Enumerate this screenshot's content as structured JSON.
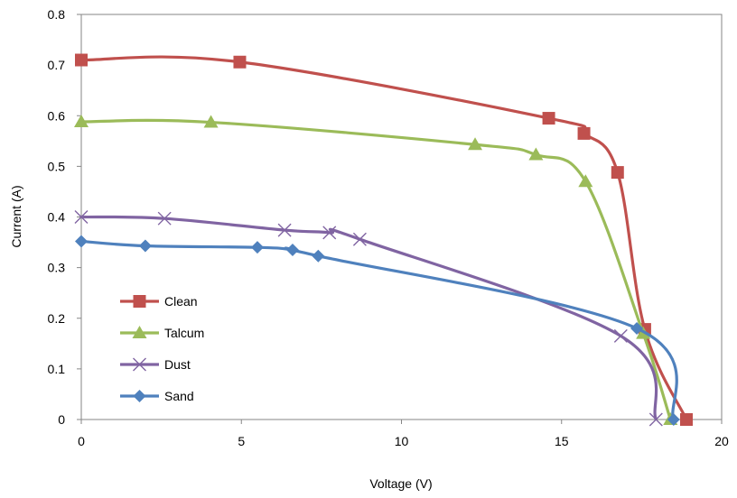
{
  "chart_data": {
    "type": "scatter",
    "xlabel": "Voltage (V)",
    "ylabel": "Current (A)",
    "xlim": [
      0,
      20
    ],
    "ylim": [
      0,
      0.8
    ],
    "xticks": [
      0,
      5,
      10,
      15,
      20
    ],
    "yticks": [
      0,
      0.1,
      0.2,
      0.3,
      0.4,
      0.5,
      0.6,
      0.7,
      0.8
    ],
    "xtick_labels": [
      "0",
      "5",
      "10",
      "15",
      "20"
    ],
    "ytick_labels": [
      "0",
      "0.1",
      "0.2",
      "0.3",
      "0.4",
      "0.5",
      "0.6",
      "0.7",
      "0.8"
    ],
    "grid": false,
    "legend_position": "left-bottom",
    "series": [
      {
        "name": "Clean",
        "color": "#C0504D",
        "marker": "square",
        "x": [
          0,
          4.95,
          14.6,
          15.7,
          16.75,
          17.6,
          18.9
        ],
        "y": [
          0.71,
          0.706,
          0.595,
          0.565,
          0.488,
          0.178,
          0
        ]
      },
      {
        "name": "Talcum",
        "color": "#9BBB59",
        "marker": "triangle",
        "x": [
          0,
          4.05,
          12.3,
          14.2,
          15.75,
          17.55,
          18.4
        ],
        "y": [
          0.588,
          0.587,
          0.543,
          0.523,
          0.47,
          0.17,
          0
        ]
      },
      {
        "name": "Dust",
        "color": "#8064A2",
        "marker": "x",
        "x": [
          0,
          2.6,
          6.35,
          7.75,
          8.7,
          16.85,
          17.95
        ],
        "y": [
          0.4,
          0.397,
          0.374,
          0.369,
          0.356,
          0.165,
          0
        ]
      },
      {
        "name": "Sand",
        "color": "#4F81BD",
        "marker": "diamond",
        "x": [
          0,
          2,
          5.5,
          6.6,
          7.4,
          17.35,
          18.5
        ],
        "y": [
          0.352,
          0.343,
          0.34,
          0.335,
          0.323,
          0.18,
          0
        ]
      }
    ]
  }
}
